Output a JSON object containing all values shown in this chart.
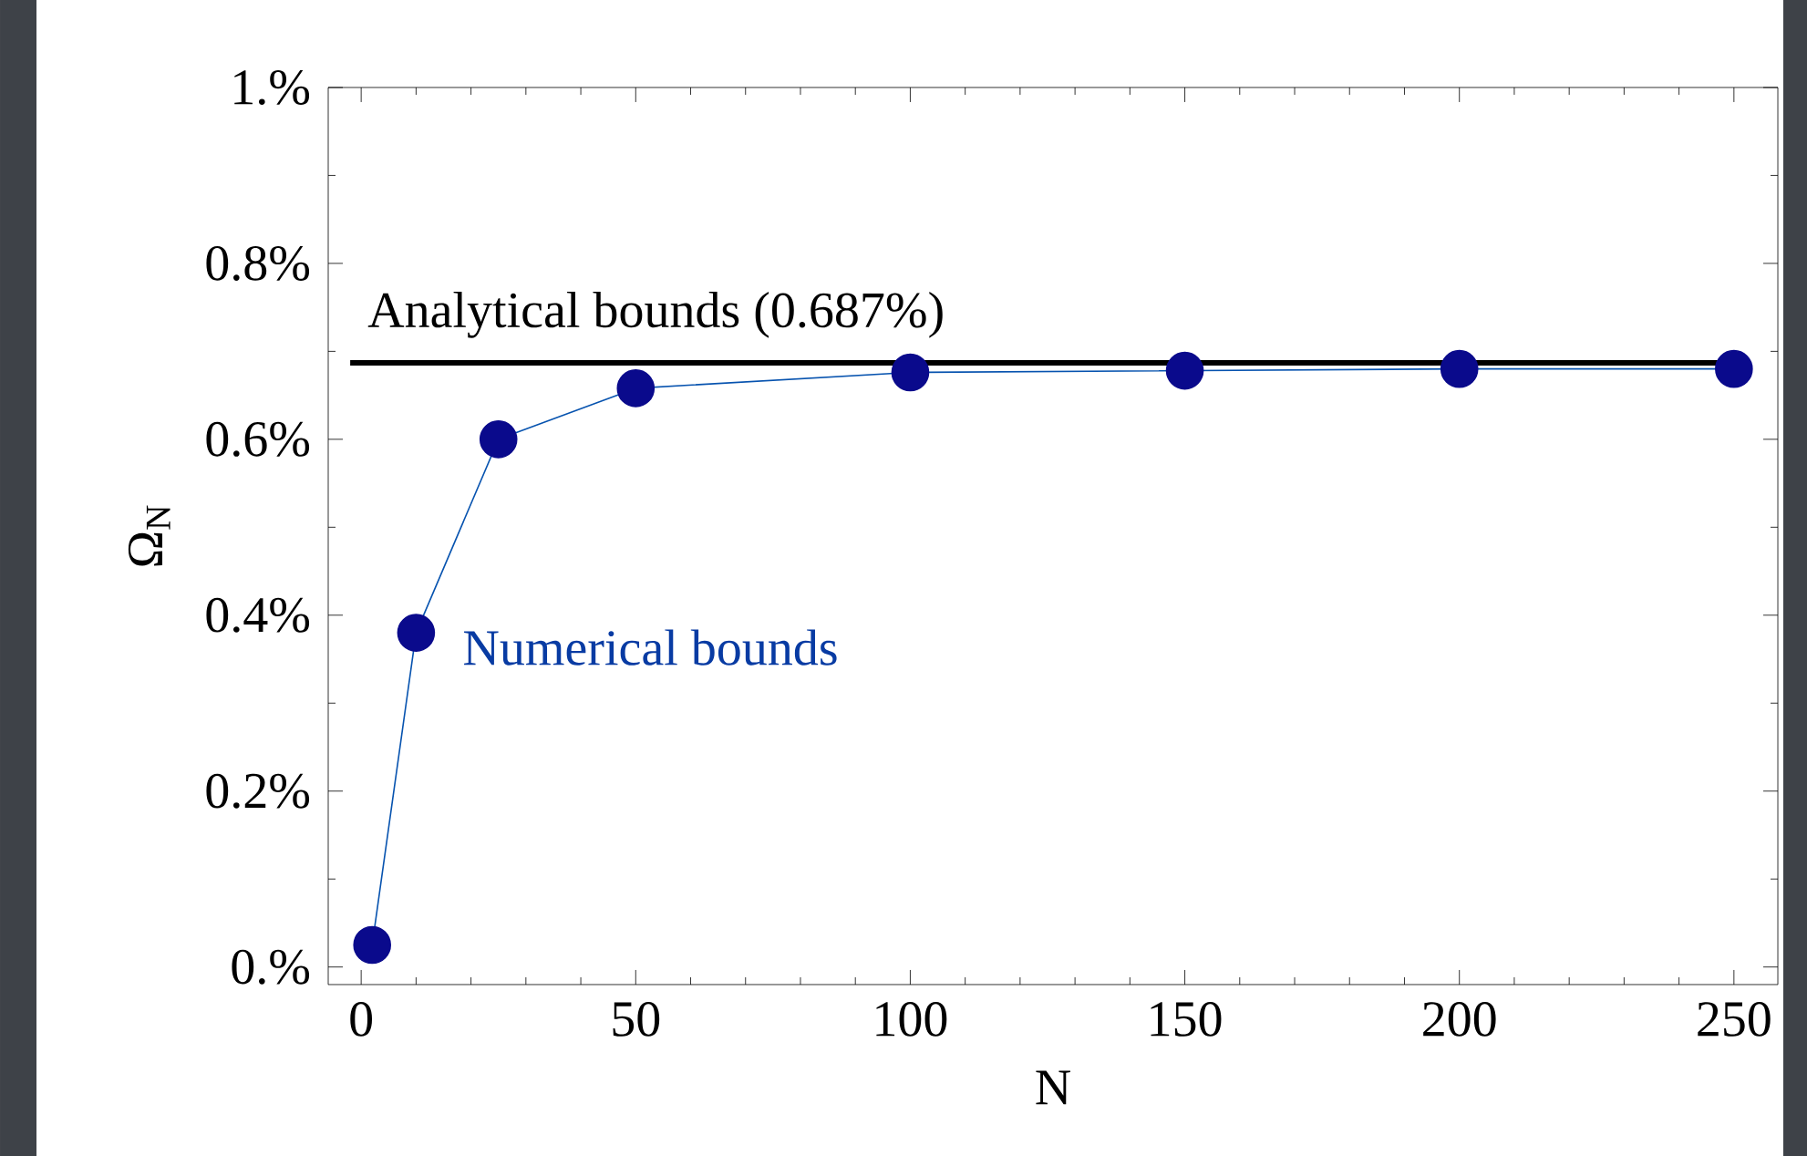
{
  "chart_data": {
    "type": "line",
    "xlabel": "N",
    "ylabel": "Ω$_{N}$",
    "x": [
      2,
      10,
      25,
      50,
      100,
      150,
      200,
      250
    ],
    "series": [
      {
        "name": "Numerical bounds",
        "color": "#0a0a8c",
        "values": [
          0.025,
          0.38,
          0.6,
          0.658,
          0.676,
          0.678,
          0.68,
          0.68
        ]
      }
    ],
    "marker": "circle",
    "line_style": "solid",
    "grid": false,
    "legend": false,
    "xlim": [
      -6,
      258
    ],
    "ylim": [
      -0.02,
      1.0
    ],
    "xticks": [
      0,
      50,
      100,
      150,
      200,
      250
    ],
    "yticks": [
      {
        "value": 0,
        "label": "0.%"
      },
      {
        "value": 0.2,
        "label": "0.2%"
      },
      {
        "value": 0.4,
        "label": "0.4%"
      },
      {
        "value": 0.6,
        "label": "0.6%"
      },
      {
        "value": 0.8,
        "label": "0.8%"
      },
      {
        "value": 1.0,
        "label": "1.%"
      }
    ],
    "ref_lines": [
      {
        "axis": "y",
        "value": 0.687,
        "label": "Analytical bounds (0.687%)",
        "color": "#000000",
        "line_style": "solid"
      }
    ]
  }
}
